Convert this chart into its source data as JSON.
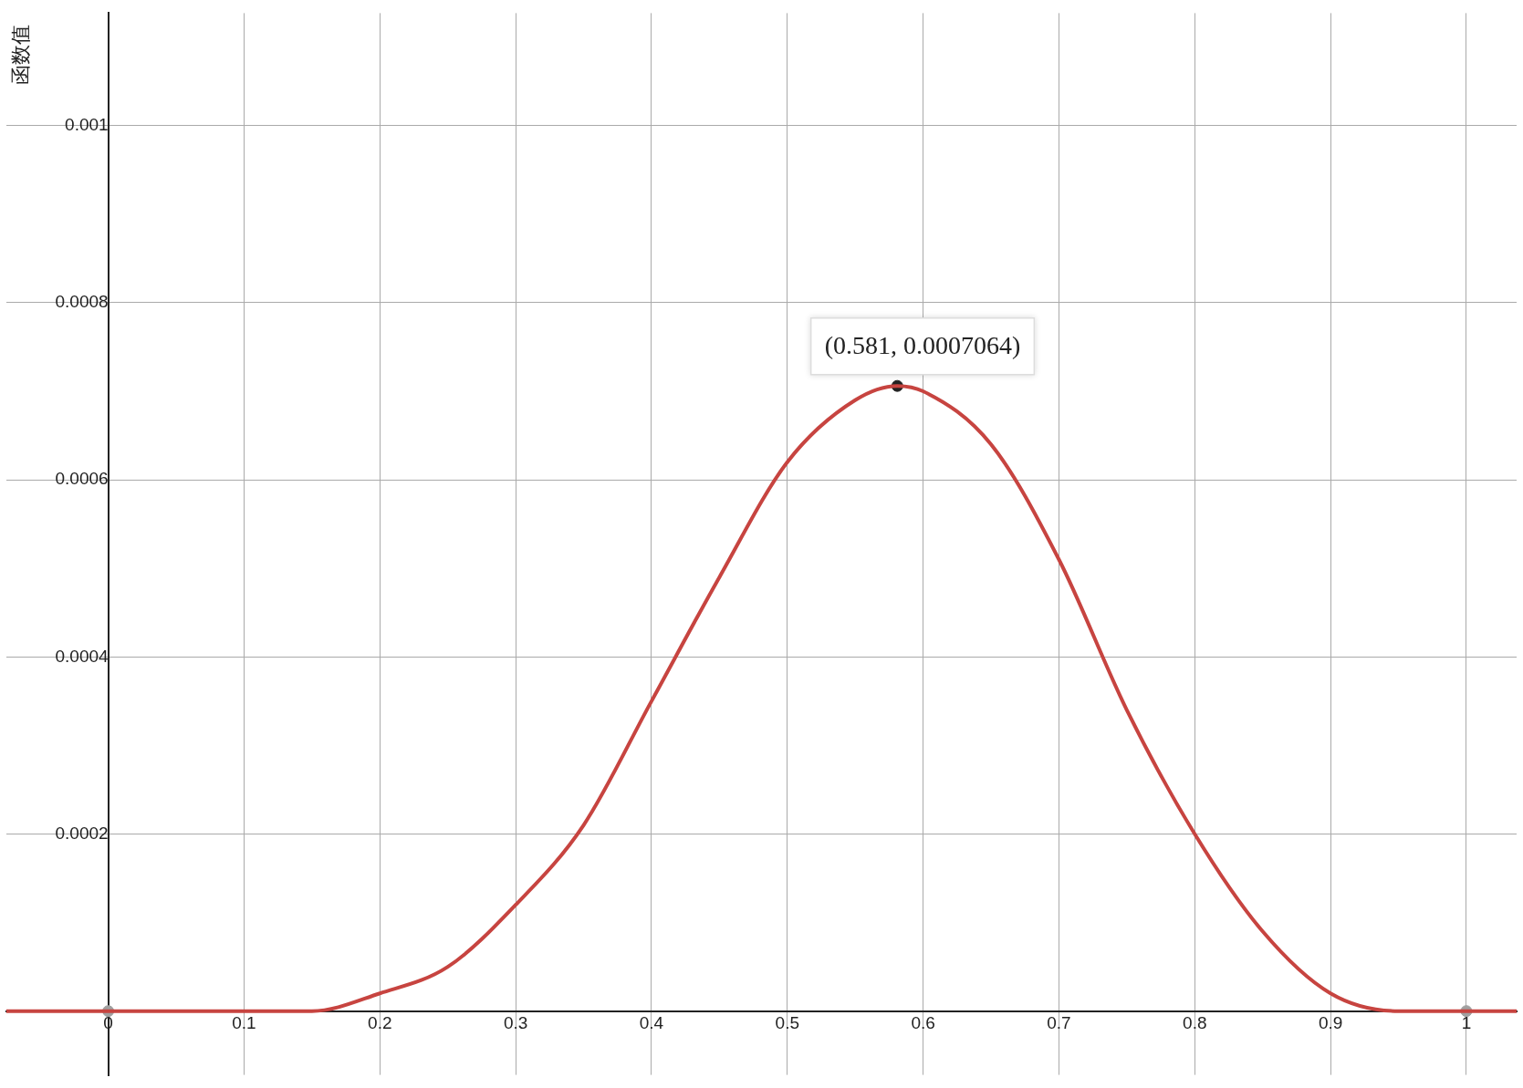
{
  "chart_data": {
    "type": "line",
    "ylabel": "函数值",
    "xlim": [
      -0.075,
      1.037
    ],
    "ylim": [
      -7.2e-05,
      0.001127
    ],
    "xticks": [
      0,
      0.1,
      0.2,
      0.3,
      0.4,
      0.5,
      0.6,
      0.7,
      0.8,
      0.9,
      1
    ],
    "yticks": [
      {
        "value": 0,
        "label": null
      },
      0.0002,
      0.0004,
      0.0006,
      0.0008,
      0.001
    ],
    "grid": true,
    "legend": false,
    "series": [
      {
        "color": "#c74440",
        "marker": "none",
        "x": [
          -0.075,
          0,
          0.05,
          0.1,
          0.15,
          0.2,
          0.25,
          0.3,
          0.35,
          0.4,
          0.45,
          0.5,
          0.55,
          0.581,
          0.6,
          0.65,
          0.7,
          0.75,
          0.8,
          0.85,
          0.9,
          0.95,
          1,
          1.037
        ],
        "values": [
          0,
          0,
          0,
          0,
          0,
          2e-05,
          5e-05,
          0.00012,
          0.00021,
          0.00035,
          0.00049,
          0.00062,
          0.00069,
          0.000706,
          0.0007,
          0.00064,
          0.00051,
          0.00034,
          0.0002,
          9e-05,
          2e-05,
          0,
          0,
          0
        ]
      },
      {
        "type": "scatter",
        "marker": "circle",
        "x": [
          0,
          0.581,
          1
        ],
        "values": [
          0,
          0.000706,
          0
        ],
        "colors": [
          "#a0a0a0",
          "#222222",
          "#a0a0a0"
        ]
      }
    ],
    "annotations": [
      {
        "text": "(0.581, 0.0007064)",
        "x": 0.581,
        "y": 0.0007064
      }
    ]
  }
}
